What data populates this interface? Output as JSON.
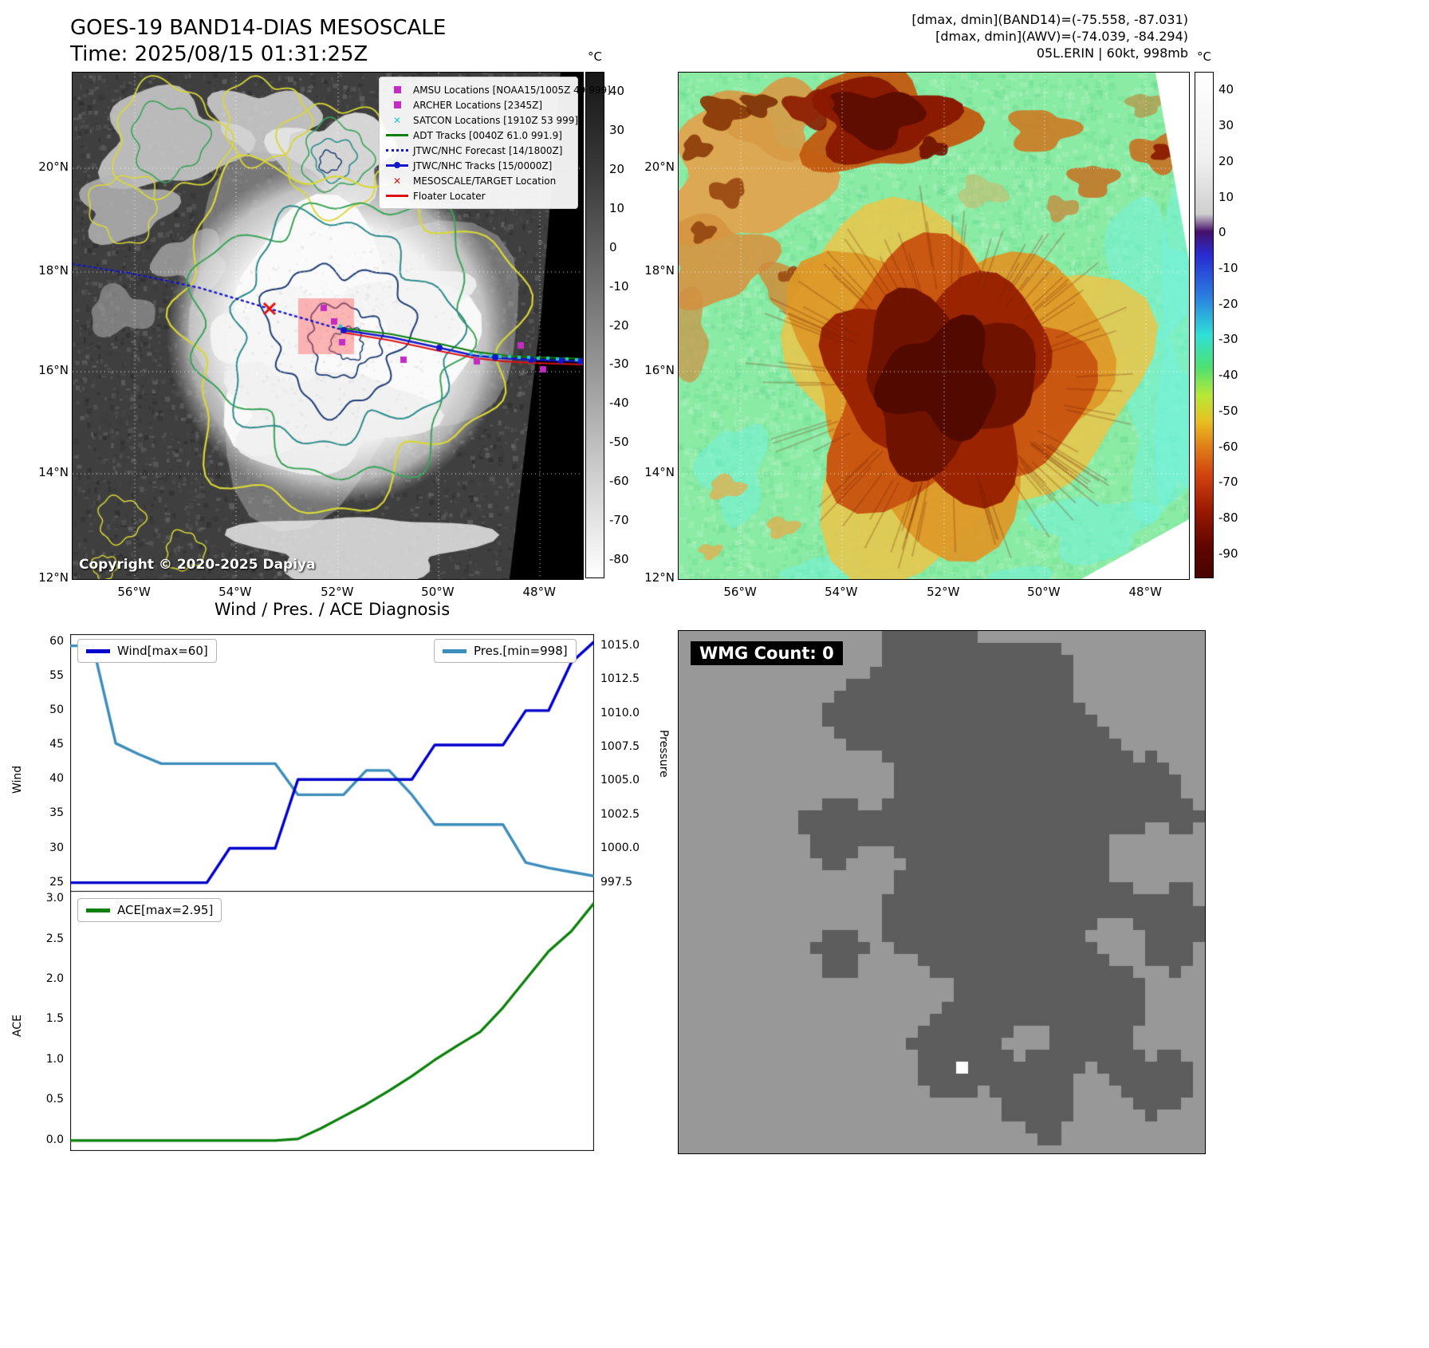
{
  "header": {
    "title": "GOES-19 BAND14-DIAS MESOSCALE",
    "subtitle": "Time: 2025/08/15 01:31:25Z",
    "right_line1": "[dmax, dmin](BAND14)=(-75.558, -87.031)",
    "right_line2": "[dmax, dmin](AWV)=(-74.039, -84.294)",
    "right_line3": "05L.ERIN | 60kt, 998mb"
  },
  "palette": {
    "amsu": "#c32cc3",
    "satcon": "#22c8c8",
    "adt": "#0a7d0a",
    "track": "#1515cc",
    "target": "#e31010",
    "floater": "#dd1111",
    "wind": "#0000cd",
    "pres": "#3c8dbc",
    "ace": "#0a800a",
    "wmg_bg": "#989898",
    "wmg_dark": "#5d5d5d"
  },
  "left_map": {
    "legend": [
      {
        "symbol": "square-magenta",
        "label": "AMSU Locations [NOAA15/1005Z 49 999]"
      },
      {
        "symbol": "square-magenta",
        "label": "ARCHER Locations [2345Z]"
      },
      {
        "symbol": "x-cyan",
        "label": "SATCON Locations [1910Z 53 999]"
      },
      {
        "symbol": "line-green",
        "label": "ADT Tracks [0040Z 61.0 991.9]"
      },
      {
        "symbol": "dotted-blue",
        "label": "JTWC/NHC Forecast [14/1800Z]"
      },
      {
        "symbol": "line-dot-blue",
        "label": "JTWC/NHC Tracks [15/0000Z]"
      },
      {
        "symbol": "x-red",
        "label": "MESOSCALE/TARGET Location"
      },
      {
        "symbol": "line-red",
        "label": "Floater Locater"
      }
    ],
    "copyright": "Copyright © 2020-2025 Dapiya",
    "lat_ticks": [
      "20°N",
      "18°N",
      "16°N",
      "14°N",
      "12°N"
    ],
    "lon_ticks": [
      "56°W",
      "54°W",
      "52°W",
      "50°W",
      "48°W"
    ],
    "colorbar": {
      "unit": "°C",
      "ticks": [
        40,
        30,
        20,
        10,
        0,
        -10,
        -20,
        -30,
        -40,
        -50,
        -60,
        -70,
        -80
      ]
    }
  },
  "right_map": {
    "lat_ticks": [
      "20°N",
      "18°N",
      "16°N",
      "14°N",
      "12°N"
    ],
    "lon_ticks": [
      "56°W",
      "54°W",
      "52°W",
      "50°W",
      "48°W"
    ],
    "colorbar": {
      "unit": "°C",
      "ticks": [
        40,
        30,
        20,
        10,
        0,
        -10,
        -20,
        -30,
        -40,
        -50,
        -60,
        -70,
        -80,
        -90
      ]
    }
  },
  "charts": {
    "title": "Wind / Pres. / ACE Diagnosis",
    "wind_legend": "Wind[max=60]",
    "pres_legend": "Pres.[min=998]",
    "ace_legend": "ACE[max=2.95]",
    "wind_ylabel": "Wind",
    "pres_ylabel": "Pressure",
    "ace_ylabel": "ACE"
  },
  "chart_data": [
    {
      "type": "line",
      "title": "Wind / Pres. / ACE Diagnosis",
      "x": [
        0,
        1,
        2,
        3,
        4,
        5,
        6,
        7,
        8,
        9,
        10,
        11,
        12,
        13,
        14,
        15,
        16,
        17,
        18,
        19,
        20,
        21,
        22,
        23
      ],
      "series": [
        {
          "name": "Wind[max=60]",
          "axis": "left",
          "color": "#0000cd",
          "values": [
            25,
            25,
            25,
            25,
            25,
            25,
            25,
            30,
            30,
            30,
            40,
            40,
            40,
            40,
            40,
            40,
            45,
            45,
            45,
            45,
            50,
            50,
            57,
            60
          ]
        },
        {
          "name": "Pres.[min=998]",
          "axis": "right",
          "color": "#3c8dbc",
          "values": [
            1015.0,
            1015.0,
            1007.8,
            1007.0,
            1006.3,
            1006.3,
            1006.3,
            1006.3,
            1006.3,
            1006.3,
            1004.0,
            1004.0,
            1004.0,
            1005.8,
            1005.8,
            1004.0,
            1001.8,
            1001.8,
            1001.8,
            1001.8,
            999.0,
            998.6,
            998.3,
            998.0
          ]
        }
      ],
      "ylabel_left": "Wind",
      "ylim_left": [
        23.8,
        61.0
      ],
      "ylabel_right": "Pressure",
      "ylim_right": [
        996.9,
        1015.8
      ],
      "yticks_left": [
        25,
        30,
        35,
        40,
        45,
        50,
        55,
        60
      ],
      "yticks_right": [
        997.5,
        1000.0,
        1002.5,
        1005.0,
        1007.5,
        1010.0,
        1012.5,
        1015.0
      ],
      "legend_position": "upper-left / upper-right",
      "grid": false
    },
    {
      "type": "line",
      "x": [
        0,
        1,
        2,
        3,
        4,
        5,
        6,
        7,
        8,
        9,
        10,
        11,
        12,
        13,
        14,
        15,
        16,
        17,
        18,
        19,
        20,
        21,
        22,
        23
      ],
      "series": [
        {
          "name": "ACE[max=2.95]",
          "color": "#0a800a",
          "values": [
            0,
            0,
            0,
            0,
            0,
            0,
            0,
            0,
            0,
            0,
            0.02,
            0.15,
            0.3,
            0.45,
            0.62,
            0.8,
            1.0,
            1.18,
            1.35,
            1.65,
            2.0,
            2.35,
            2.6,
            2.95
          ]
        }
      ],
      "ylabel": "ACE",
      "ylim": [
        -0.12,
        3.08
      ],
      "yticks": [
        0.0,
        0.5,
        1.0,
        1.5,
        2.0,
        2.5,
        3.0
      ],
      "legend_position": "upper-left",
      "grid": false
    }
  ],
  "wmg": {
    "label": "WMG Count: 0"
  }
}
